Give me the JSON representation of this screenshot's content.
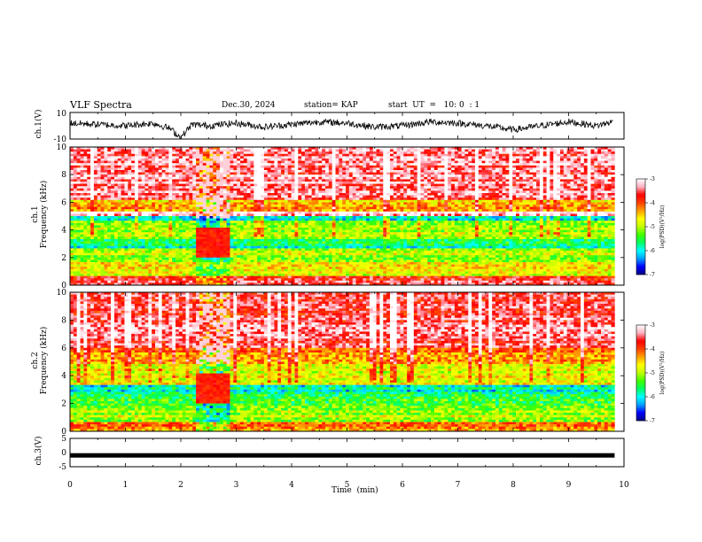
{
  "header": {
    "title": "VLF Spectra",
    "date": "Dec.30, 2024",
    "station": "station= KAP",
    "start_ut": "start  UT  =   10: 0  : 1"
  },
  "chart_data": [
    {
      "type": "line",
      "panel": "ch1-waveform",
      "ylabel": "ch.1(V)",
      "ylim": [
        -10,
        10
      ],
      "y_tick_labels": [
        "10",
        "-10"
      ],
      "xlim": [
        0,
        10
      ],
      "note_series": "noisy waveform around ~0 V with dips to about -10 V near 2 min",
      "x": [
        0,
        0.5,
        1,
        1.5,
        1.8,
        2.0,
        2.2,
        2.5,
        3,
        3.5,
        4,
        4.5,
        5,
        5.5,
        6,
        6.5,
        7,
        7.5,
        8,
        8.5,
        9,
        9.5,
        9.8
      ],
      "y": [
        2,
        1,
        0,
        2,
        -2,
        -9,
        1,
        0,
        2,
        -1,
        1,
        3,
        2,
        -1,
        0,
        3,
        2,
        0,
        -3,
        0,
        3,
        0,
        3
      ]
    },
    {
      "type": "heatmap",
      "panel": "ch1-spectrogram",
      "ylabel": "ch.1\nFrequency (kHz)",
      "ylim": [
        0,
        10
      ],
      "y_ticks": [
        0,
        2,
        4,
        6,
        8,
        10
      ],
      "xlim": [
        0,
        10
      ],
      "data_xlim": [
        0,
        9.83
      ],
      "colorbar": {
        "label": "log(PSD)(V²/Hz)",
        "range": [
          -7,
          -3
        ],
        "ticks": [
          "-3",
          "-4",
          "-5",
          "-6",
          "-7"
        ]
      },
      "bands_khz": [
        {
          "from": 0.0,
          "to": 0.6,
          "level": -3.6
        },
        {
          "from": 0.6,
          "to": 1.6,
          "level": -4.8
        },
        {
          "from": 1.6,
          "to": 2.6,
          "level": -5.0
        },
        {
          "from": 2.6,
          "to": 3.4,
          "level": -5.8
        },
        {
          "from": 3.4,
          "to": 4.6,
          "level": -5.0
        },
        {
          "from": 4.6,
          "to": 5.0,
          "level": -5.9
        },
        {
          "from": 5.0,
          "to": 5.4,
          "level": -3.2
        },
        {
          "from": 5.4,
          "to": 6.2,
          "level": -4.4
        },
        {
          "from": 6.2,
          "to": 10.0,
          "level": -3.4
        }
      ],
      "burst_window_min": [
        2.3,
        2.9
      ]
    },
    {
      "type": "heatmap",
      "panel": "ch2-spectrogram",
      "ylabel": "ch.2\nFrequency (kHz)",
      "ylim": [
        0,
        10
      ],
      "y_ticks": [
        0,
        2,
        4,
        6,
        8,
        10
      ],
      "xlim": [
        0,
        10
      ],
      "data_xlim": [
        0,
        9.83
      ],
      "colorbar": {
        "label": "log(PSD)(V²/Hz)",
        "range": [
          -7,
          -3
        ],
        "ticks": [
          "-3",
          "-4",
          "-5",
          "-6",
          "-7"
        ]
      },
      "bands_khz": [
        {
          "from": 0.0,
          "to": 0.6,
          "level": -4.2
        },
        {
          "from": 0.6,
          "to": 1.8,
          "level": -5.0
        },
        {
          "from": 1.8,
          "to": 2.6,
          "level": -5.4
        },
        {
          "from": 2.6,
          "to": 3.4,
          "level": -5.9
        },
        {
          "from": 3.4,
          "to": 4.8,
          "level": -4.8
        },
        {
          "from": 4.8,
          "to": 6.0,
          "level": -4.2
        },
        {
          "from": 6.0,
          "to": 10.0,
          "level": -3.5
        }
      ],
      "burst_window_min": [
        2.3,
        2.9
      ]
    },
    {
      "type": "line",
      "panel": "ch3-waveform",
      "ylabel": "ch.3(V)",
      "ylim": [
        -5,
        5
      ],
      "y_tick_labels": [
        "5",
        "0",
        "-5"
      ],
      "xlim": [
        0,
        10
      ],
      "xlabel": "Time  (min)",
      "x_ticks": [
        0,
        1,
        2,
        3,
        4,
        5,
        6,
        7,
        8,
        9,
        10
      ],
      "note_series": "flat dense trace near -1 V",
      "x": [
        0,
        9.83
      ],
      "y": [
        -1,
        -1
      ]
    }
  ],
  "colors": {
    "colormap": [
      "#000080",
      "#0000ff",
      "#00a0ff",
      "#00ffff",
      "#00ff60",
      "#40ff00",
      "#c0ff00",
      "#ffff00",
      "#ffa000",
      "#ff4000",
      "#ff0000",
      "#ffb0c0",
      "#ffffff"
    ]
  }
}
